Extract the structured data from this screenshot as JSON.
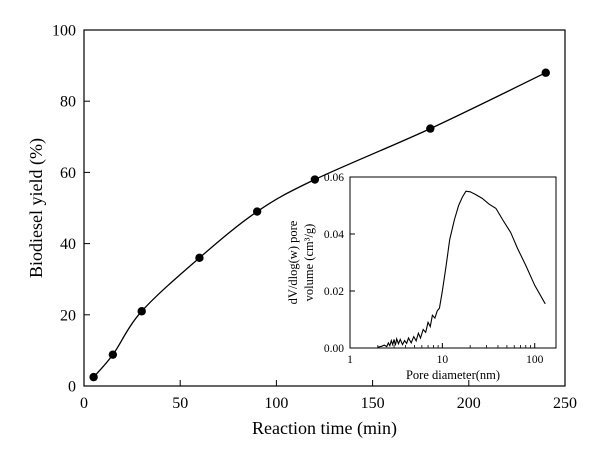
{
  "chart_data": [
    {
      "type": "line",
      "markers": "circle",
      "xlabel": "Reaction time (min)",
      "ylabel": "Biodiesel yield (%)",
      "xlim": [
        0,
        250
      ],
      "ylim": [
        0,
        100
      ],
      "xticks": [
        0,
        50,
        100,
        150,
        200,
        250
      ],
      "yticks": [
        0,
        20,
        40,
        60,
        80,
        100
      ],
      "grid": false,
      "x": [
        5,
        15,
        30,
        60,
        90,
        120,
        180,
        240
      ],
      "y": [
        2.5,
        8.8,
        21,
        36,
        49,
        58,
        72.3,
        88
      ],
      "color": "#000000"
    },
    {
      "type": "line",
      "inset": true,
      "xscale": "log",
      "xlabel": "Pore diameter(nm)",
      "ylabel_line1": "dV/dlog(w) pore",
      "ylabel_line2": "volume (cm³/g)",
      "xlim": [
        1,
        170
      ],
      "ylim": [
        0,
        0.06
      ],
      "xticks": [
        1,
        10,
        100
      ],
      "yticks": [
        0.0,
        0.02,
        0.04,
        0.06
      ],
      "ytick_labels": [
        "0.00",
        "0.02",
        "0.04",
        "0.06"
      ],
      "grid": false,
      "x": [
        2.0,
        2.2,
        2.35,
        2.5,
        2.6,
        2.7,
        2.8,
        2.9,
        3.0,
        3.1,
        3.2,
        3.35,
        3.5,
        3.7,
        3.9,
        4.1,
        4.3,
        4.6,
        4.9,
        5.2,
        5.5,
        5.8,
        6.2,
        6.6,
        7.0,
        7.4,
        7.8,
        8.3,
        8.8,
        9.3,
        10,
        11,
        12,
        13.5,
        15,
        16.5,
        18,
        20,
        23,
        27,
        32,
        38,
        45,
        55,
        65,
        80,
        100,
        130
      ],
      "y": [
        0.0003,
        0.0006,
        0.001,
        0.0005,
        0.0018,
        0.0008,
        0.0026,
        0.0012,
        0.003,
        0.0009,
        0.0032,
        0.0015,
        0.003,
        0.0012,
        0.0026,
        0.0016,
        0.0035,
        0.0018,
        0.004,
        0.0025,
        0.0052,
        0.0035,
        0.0065,
        0.0055,
        0.009,
        0.0075,
        0.0115,
        0.0105,
        0.013,
        0.014,
        0.02,
        0.029,
        0.038,
        0.045,
        0.05,
        0.053,
        0.055,
        0.0548,
        0.0538,
        0.0525,
        0.0505,
        0.049,
        0.045,
        0.0405,
        0.035,
        0.029,
        0.022,
        0.0155
      ],
      "color": "#000000"
    }
  ]
}
